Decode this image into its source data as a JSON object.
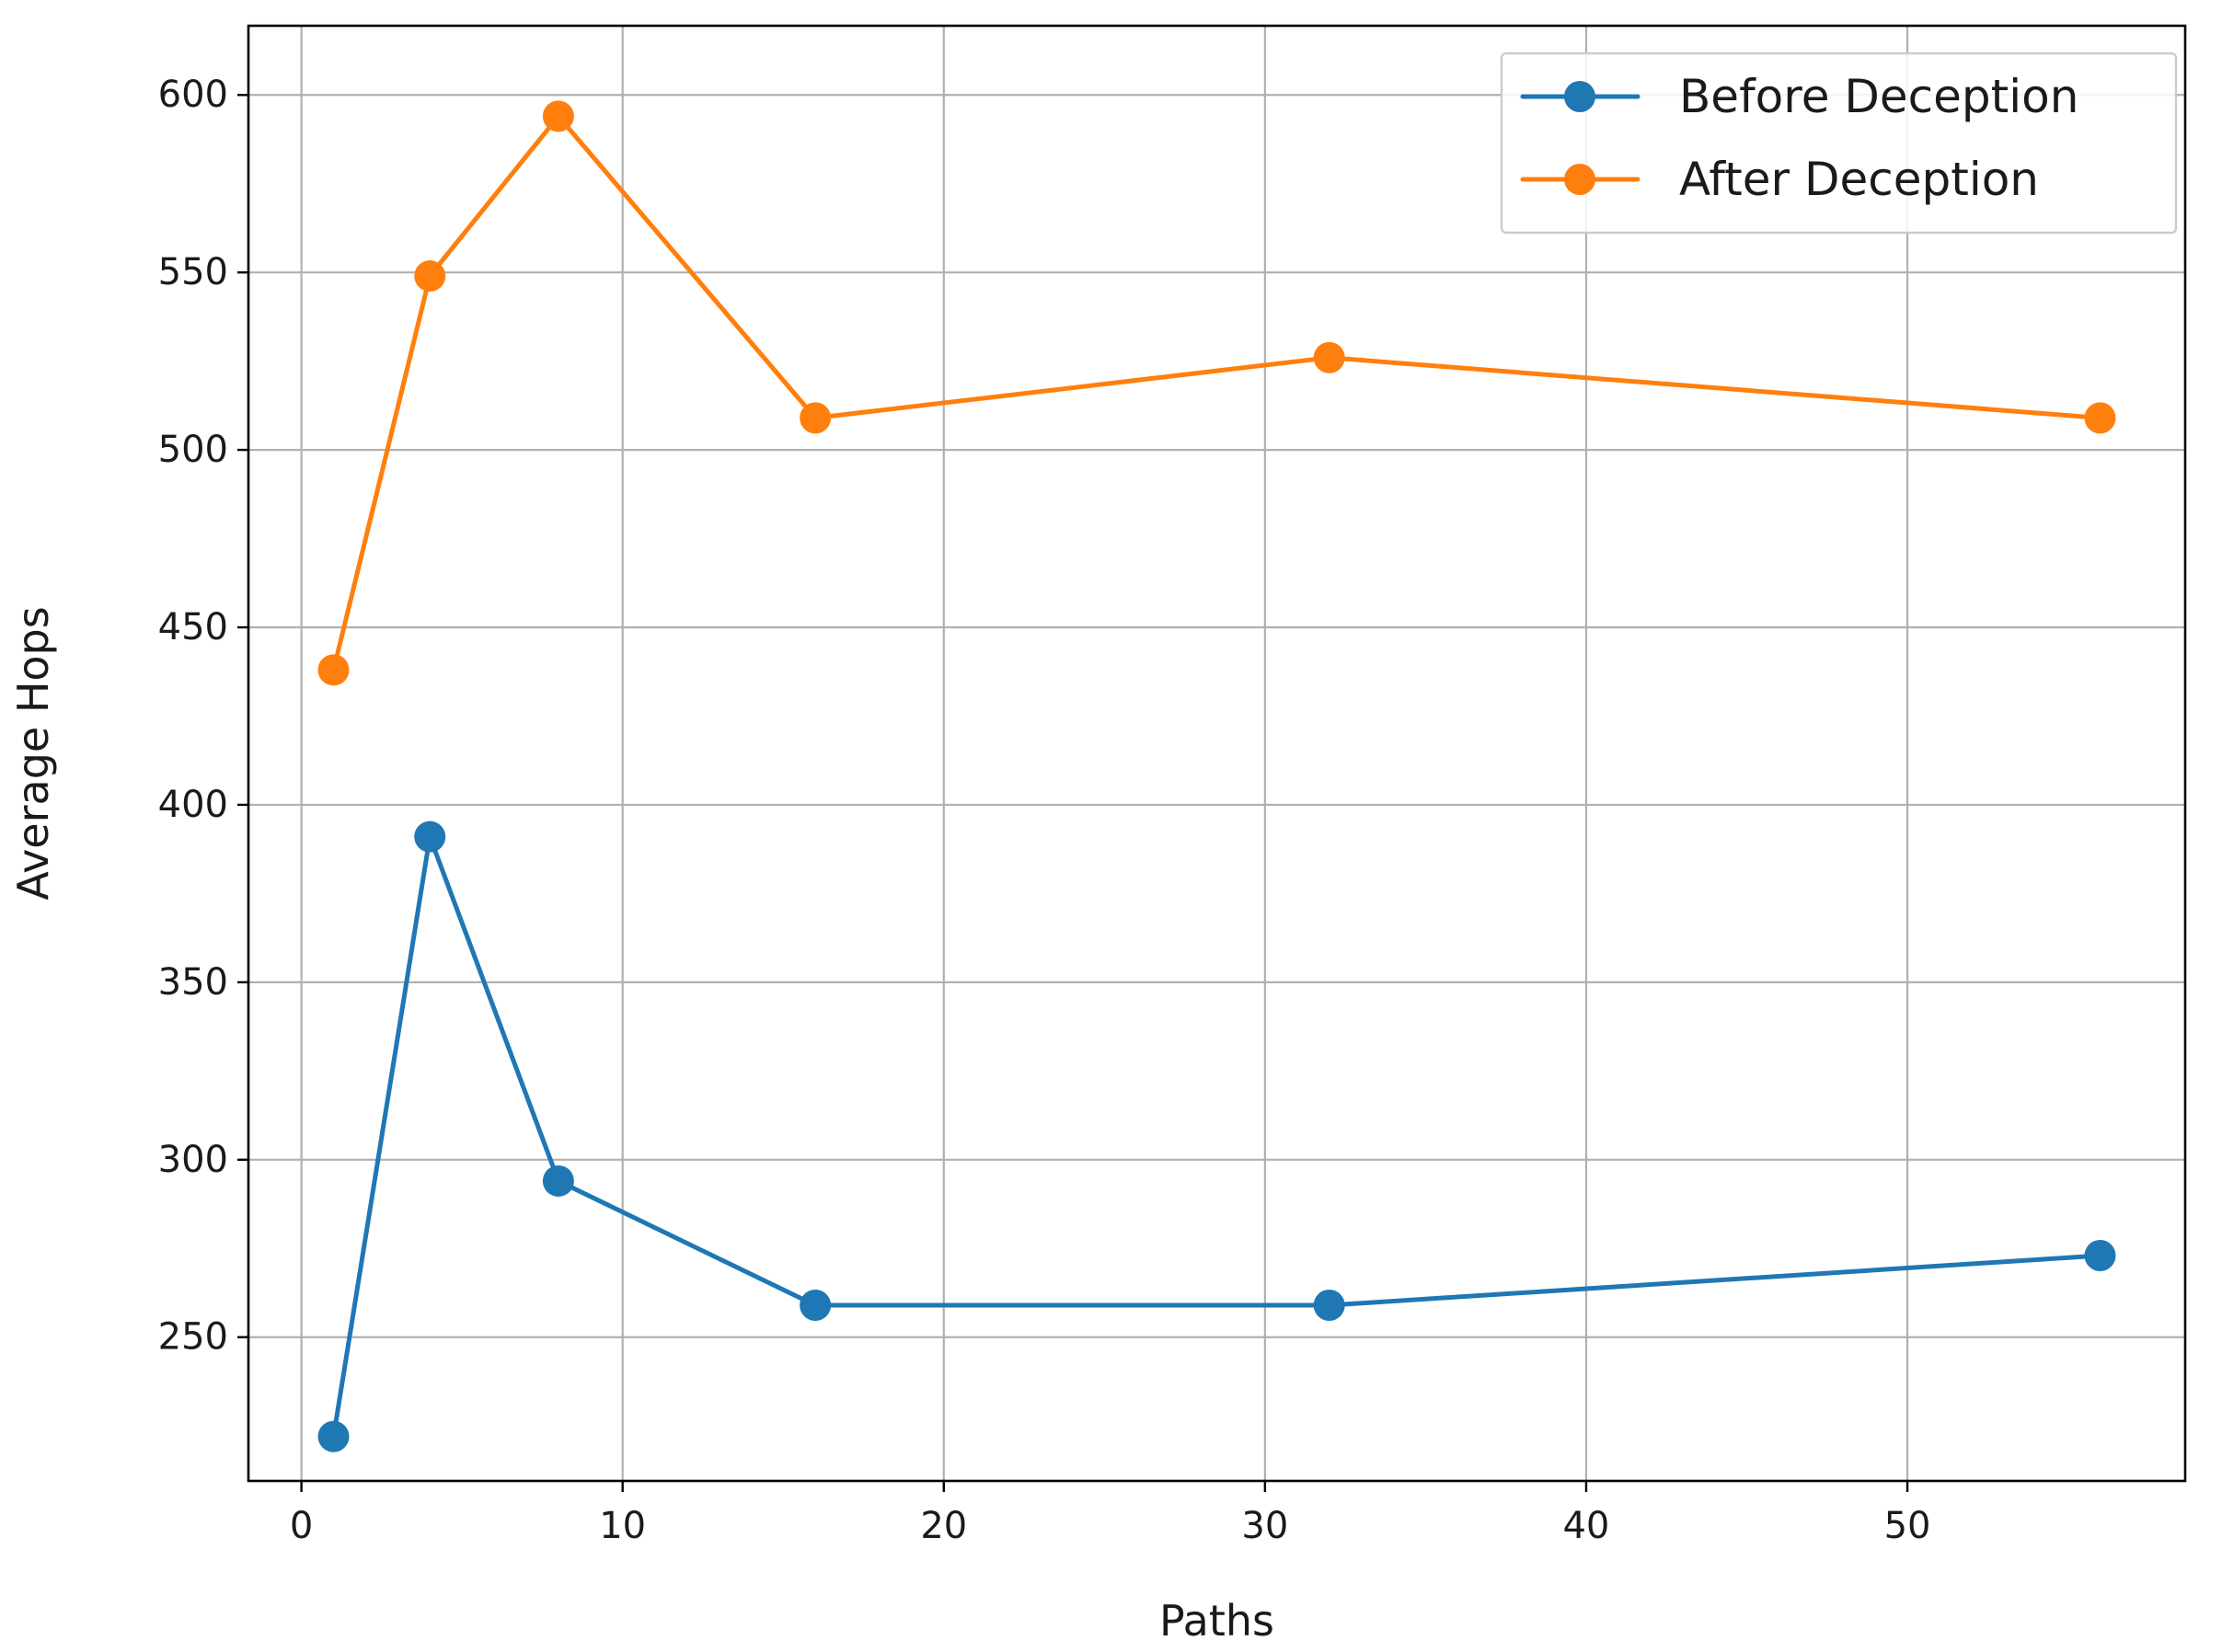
{
  "chart_data": {
    "type": "line",
    "title": "",
    "xlabel": "Paths",
    "ylabel": "Average Hops",
    "xlim": [
      -1.65,
      58.65
    ],
    "ylim": [
      209.5,
      619.5
    ],
    "x_ticks": [
      0,
      10,
      20,
      30,
      40,
      50
    ],
    "y_ticks": [
      250,
      300,
      350,
      400,
      450,
      500,
      550,
      600
    ],
    "grid": true,
    "legend_position": "top-right",
    "series": [
      {
        "name": "Before Deception",
        "color": "#1f77b4",
        "marker": "circle",
        "x": [
          1,
          4,
          8,
          16,
          32,
          56
        ],
        "y": [
          222,
          391,
          294,
          259,
          259,
          273
        ]
      },
      {
        "name": "After Deception",
        "color": "#ff7f0e",
        "marker": "circle",
        "x": [
          1,
          4,
          8,
          16,
          32,
          56
        ],
        "y": [
          438,
          549,
          594,
          509,
          526,
          509
        ]
      }
    ]
  }
}
